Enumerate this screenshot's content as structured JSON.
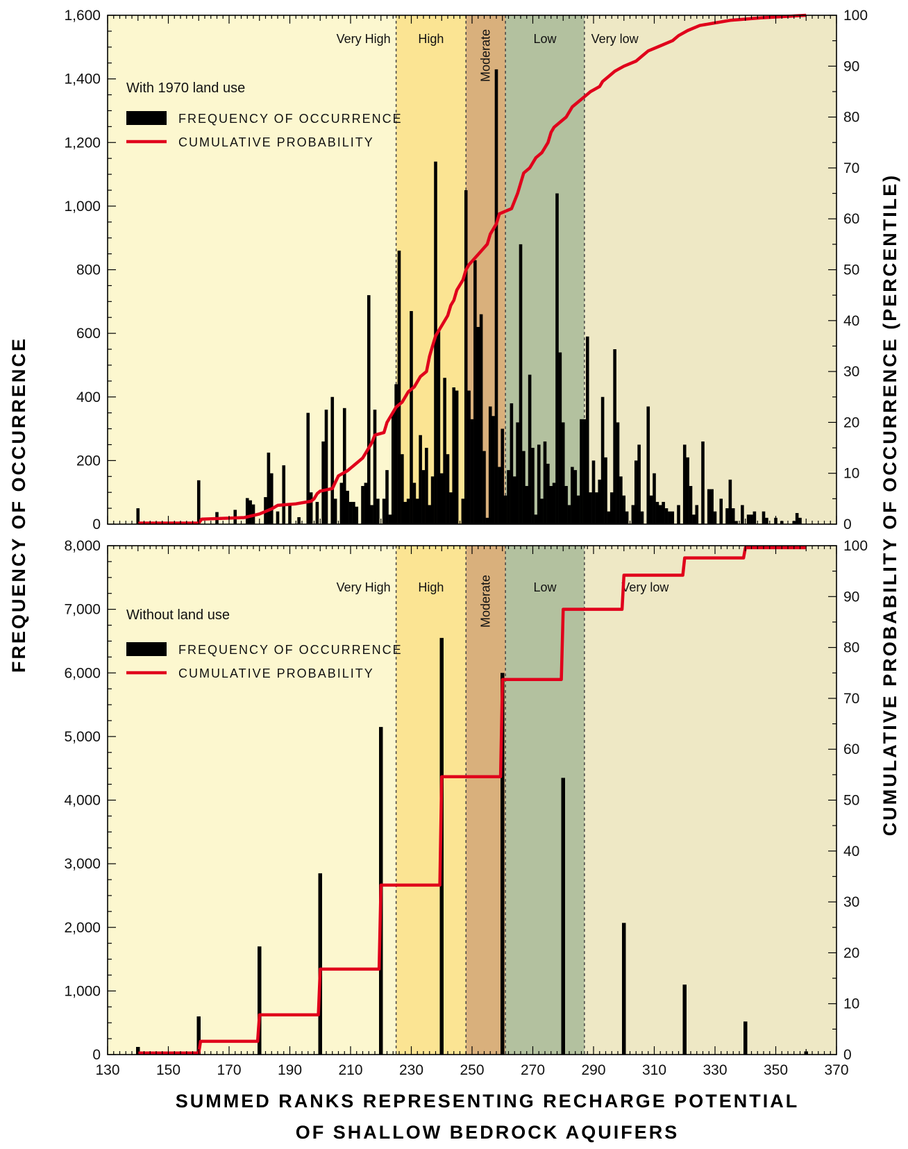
{
  "xaxis": {
    "label_line1": "SUMMED RANKS REPRESENTING RECHARGE POTENTIAL",
    "label_line2": "OF SHALLOW BEDROCK AQUIFERS",
    "range": [
      130,
      370
    ],
    "ticks": [
      "130",
      "150",
      "170",
      "190",
      "210",
      "230",
      "250",
      "270",
      "290",
      "310",
      "330",
      "350",
      "370"
    ]
  },
  "ylabel_left": "FREQUENCY OF OCCURRENCE",
  "ylabel_right": "CUMULATIVE PROBABILITY OF OCCURRENCE (PERCENTILE)",
  "zones": [
    {
      "label": "Very High",
      "from": 130,
      "to": 225,
      "color": "#fcf7cf"
    },
    {
      "label": "High",
      "from": 225,
      "to": 248,
      "color": "#fbe493"
    },
    {
      "label": "Moderate",
      "from": 248,
      "to": 261,
      "color": "#d9b07c"
    },
    {
      "label": "Low",
      "from": 261,
      "to": 287,
      "color": "#b3c19f"
    },
    {
      "label": "Very low",
      "from": 287,
      "to": 370,
      "color": "#eee8c5"
    }
  ],
  "colors": {
    "bars": "#000000",
    "cumulative": "#e0001b",
    "boundary": "#444444"
  },
  "chart_data": [
    {
      "type": "bar",
      "title": "With 1970 land use",
      "legend": {
        "bars": "FREQUENCY OF OCCURRENCE",
        "line": "CUMULATIVE PROBABILITY",
        "placement": "top-left"
      },
      "ylim_left": [
        0,
        1600
      ],
      "yticks_left": [
        "0",
        "200",
        "400",
        "600",
        "800",
        "1,000",
        "1,200",
        "1,400",
        "1,600"
      ],
      "ylim_right": [
        0,
        100
      ],
      "yticks_right": [
        "0",
        "10",
        "20",
        "30",
        "40",
        "50",
        "60",
        "70",
        "80",
        "90",
        "100"
      ],
      "bars": [
        [
          140,
          50
        ],
        [
          160,
          138
        ],
        [
          166,
          38
        ],
        [
          172,
          45
        ],
        [
          176,
          82
        ],
        [
          177,
          75
        ],
        [
          178,
          62
        ],
        [
          182,
          85
        ],
        [
          183,
          225
        ],
        [
          184,
          160
        ],
        [
          186,
          40
        ],
        [
          188,
          185
        ],
        [
          190,
          60
        ],
        [
          193,
          22
        ],
        [
          196,
          350
        ],
        [
          197,
          100
        ],
        [
          199,
          70
        ],
        [
          201,
          260
        ],
        [
          202,
          360
        ],
        [
          204,
          400
        ],
        [
          205,
          80
        ],
        [
          207,
          130
        ],
        [
          208,
          365
        ],
        [
          209,
          105
        ],
        [
          210,
          70
        ],
        [
          211,
          70
        ],
        [
          212,
          55
        ],
        [
          214,
          120
        ],
        [
          215,
          130
        ],
        [
          216,
          720
        ],
        [
          217,
          60
        ],
        [
          218,
          360
        ],
        [
          219,
          80
        ],
        [
          221,
          80
        ],
        [
          222,
          170
        ],
        [
          223,
          30
        ],
        [
          224,
          350
        ],
        [
          225,
          440
        ],
        [
          226,
          860
        ],
        [
          227,
          220
        ],
        [
          228,
          70
        ],
        [
          229,
          80
        ],
        [
          230,
          670
        ],
        [
          231,
          130
        ],
        [
          232,
          80
        ],
        [
          233,
          280
        ],
        [
          234,
          170
        ],
        [
          235,
          240
        ],
        [
          236,
          60
        ],
        [
          237,
          150
        ],
        [
          238,
          1140
        ],
        [
          239,
          610
        ],
        [
          240,
          160
        ],
        [
          241,
          460
        ],
        [
          242,
          220
        ],
        [
          243,
          100
        ],
        [
          244,
          430
        ],
        [
          245,
          420
        ],
        [
          247,
          80
        ],
        [
          248,
          1050
        ],
        [
          249,
          420
        ],
        [
          250,
          330
        ],
        [
          251,
          830
        ],
        [
          252,
          620
        ],
        [
          253,
          660
        ],
        [
          254,
          230
        ],
        [
          255,
          20
        ],
        [
          256,
          370
        ],
        [
          257,
          340
        ],
        [
          258,
          1430
        ],
        [
          259,
          180
        ],
        [
          260,
          300
        ],
        [
          261,
          90
        ],
        [
          262,
          170
        ],
        [
          263,
          380
        ],
        [
          264,
          150
        ],
        [
          265,
          320
        ],
        [
          266,
          880
        ],
        [
          267,
          230
        ],
        [
          268,
          120
        ],
        [
          269,
          470
        ],
        [
          270,
          240
        ],
        [
          271,
          30
        ],
        [
          272,
          250
        ],
        [
          273,
          80
        ],
        [
          274,
          260
        ],
        [
          275,
          190
        ],
        [
          276,
          120
        ],
        [
          277,
          130
        ],
        [
          278,
          1040
        ],
        [
          279,
          540
        ],
        [
          280,
          320
        ],
        [
          281,
          120
        ],
        [
          282,
          60
        ],
        [
          283,
          180
        ],
        [
          284,
          170
        ],
        [
          285,
          90
        ],
        [
          286,
          330
        ],
        [
          287,
          330
        ],
        [
          288,
          590
        ],
        [
          289,
          100
        ],
        [
          290,
          200
        ],
        [
          291,
          100
        ],
        [
          292,
          140
        ],
        [
          293,
          400
        ],
        [
          294,
          210
        ],
        [
          295,
          40
        ],
        [
          296,
          100
        ],
        [
          297,
          550
        ],
        [
          298,
          320
        ],
        [
          299,
          150
        ],
        [
          300,
          90
        ],
        [
          301,
          40
        ],
        [
          303,
          60
        ],
        [
          304,
          200
        ],
        [
          305,
          250
        ],
        [
          306,
          40
        ],
        [
          308,
          370
        ],
        [
          309,
          90
        ],
        [
          310,
          160
        ],
        [
          311,
          70
        ],
        [
          312,
          60
        ],
        [
          313,
          70
        ],
        [
          314,
          50
        ],
        [
          315,
          40
        ],
        [
          316,
          40
        ],
        [
          318,
          60
        ],
        [
          320,
          250
        ],
        [
          321,
          210
        ],
        [
          322,
          120
        ],
        [
          323,
          30
        ],
        [
          324,
          60
        ],
        [
          326,
          260
        ],
        [
          328,
          110
        ],
        [
          329,
          110
        ],
        [
          330,
          40
        ],
        [
          332,
          80
        ],
        [
          334,
          50
        ],
        [
          335,
          140
        ],
        [
          336,
          50
        ],
        [
          337,
          10
        ],
        [
          339,
          60
        ],
        [
          341,
          30
        ],
        [
          342,
          30
        ],
        [
          343,
          40
        ],
        [
          346,
          40
        ],
        [
          347,
          20
        ],
        [
          350,
          20
        ],
        [
          352,
          10
        ],
        [
          356,
          10
        ],
        [
          357,
          35
        ],
        [
          358,
          20
        ]
      ],
      "cumulative": [
        [
          140,
          0.2
        ],
        [
          160,
          0.2
        ],
        [
          161,
          1
        ],
        [
          175,
          1.3
        ],
        [
          180,
          2
        ],
        [
          184,
          3
        ],
        [
          186,
          3.7
        ],
        [
          192,
          4
        ],
        [
          197,
          4.5
        ],
        [
          198,
          5
        ],
        [
          199,
          6
        ],
        [
          200,
          6.5
        ],
        [
          204,
          7
        ],
        [
          206,
          9.5
        ],
        [
          209,
          10.5
        ],
        [
          212,
          12
        ],
        [
          214,
          13
        ],
        [
          216,
          15
        ],
        [
          217,
          16
        ],
        [
          218,
          17.5
        ],
        [
          221,
          18
        ],
        [
          222,
          20
        ],
        [
          225,
          23
        ],
        [
          227,
          24
        ],
        [
          229,
          26
        ],
        [
          231,
          27
        ],
        [
          233,
          29
        ],
        [
          235,
          30
        ],
        [
          236,
          33
        ],
        [
          237,
          35
        ],
        [
          238,
          37
        ],
        [
          240,
          39
        ],
        [
          242,
          41
        ],
        [
          243,
          43
        ],
        [
          244,
          44
        ],
        [
          245,
          46
        ],
        [
          247,
          48
        ],
        [
          248,
          50
        ],
        [
          249,
          51
        ],
        [
          252,
          53
        ],
        [
          255,
          55
        ],
        [
          256,
          57
        ],
        [
          258,
          59
        ],
        [
          259,
          61
        ],
        [
          263,
          62
        ],
        [
          265,
          65
        ],
        [
          266,
          67
        ],
        [
          267,
          69
        ],
        [
          269,
          70
        ],
        [
          271,
          72
        ],
        [
          273,
          73
        ],
        [
          275,
          75
        ],
        [
          276,
          77
        ],
        [
          277,
          78
        ],
        [
          279,
          79
        ],
        [
          281,
          80
        ],
        [
          283,
          82
        ],
        [
          285,
          83
        ],
        [
          287,
          84
        ],
        [
          289,
          85
        ],
        [
          292,
          86
        ],
        [
          293,
          87
        ],
        [
          295,
          88
        ],
        [
          297,
          89
        ],
        [
          300,
          90
        ],
        [
          304,
          91
        ],
        [
          306,
          92
        ],
        [
          308,
          93
        ],
        [
          312,
          94
        ],
        [
          316,
          95
        ],
        [
          318,
          96
        ],
        [
          321,
          97
        ],
        [
          325,
          98
        ],
        [
          330,
          98.5
        ],
        [
          335,
          99
        ],
        [
          345,
          99.5
        ],
        [
          360,
          100
        ]
      ]
    },
    {
      "type": "bar",
      "title": "Without land use",
      "legend": {
        "bars": "FREQUENCY OF OCCURRENCE",
        "line": "CUMULATIVE PROBABILITY",
        "placement": "top-left"
      },
      "ylim_left": [
        0,
        8000
      ],
      "yticks_left": [
        "0",
        "1,000",
        "2,000",
        "3,000",
        "4,000",
        "5,000",
        "6,000",
        "7,000",
        "8,000"
      ],
      "ylim_right": [
        0,
        100
      ],
      "yticks_right": [
        "0",
        "10",
        "20",
        "30",
        "40",
        "50",
        "60",
        "70",
        "80",
        "90",
        "100"
      ],
      "bars": [
        [
          140,
          120
        ],
        [
          160,
          600
        ],
        [
          180,
          1700
        ],
        [
          200,
          2850
        ],
        [
          220,
          5150
        ],
        [
          240,
          6550
        ],
        [
          260,
          6000
        ],
        [
          280,
          4350
        ],
        [
          300,
          2070
        ],
        [
          320,
          1100
        ],
        [
          340,
          520
        ],
        [
          360,
          50
        ]
      ],
      "cumulative": [
        [
          140,
          0.3
        ],
        [
          160,
          0.3
        ],
        [
          160.6,
          2.6
        ],
        [
          179.4,
          2.6
        ],
        [
          180,
          7.8
        ],
        [
          199.4,
          7.8
        ],
        [
          200,
          16.8
        ],
        [
          219.4,
          16.8
        ],
        [
          220,
          33.3
        ],
        [
          239.4,
          33.3
        ],
        [
          240,
          54.6
        ],
        [
          259.4,
          54.6
        ],
        [
          260,
          73.7
        ],
        [
          279.4,
          73.7
        ],
        [
          280,
          87.5
        ],
        [
          299.4,
          87.5
        ],
        [
          300,
          94.2
        ],
        [
          319.4,
          94.2
        ],
        [
          320,
          97.6
        ],
        [
          339.4,
          97.6
        ],
        [
          340,
          99.6
        ],
        [
          360,
          99.6
        ]
      ]
    }
  ]
}
